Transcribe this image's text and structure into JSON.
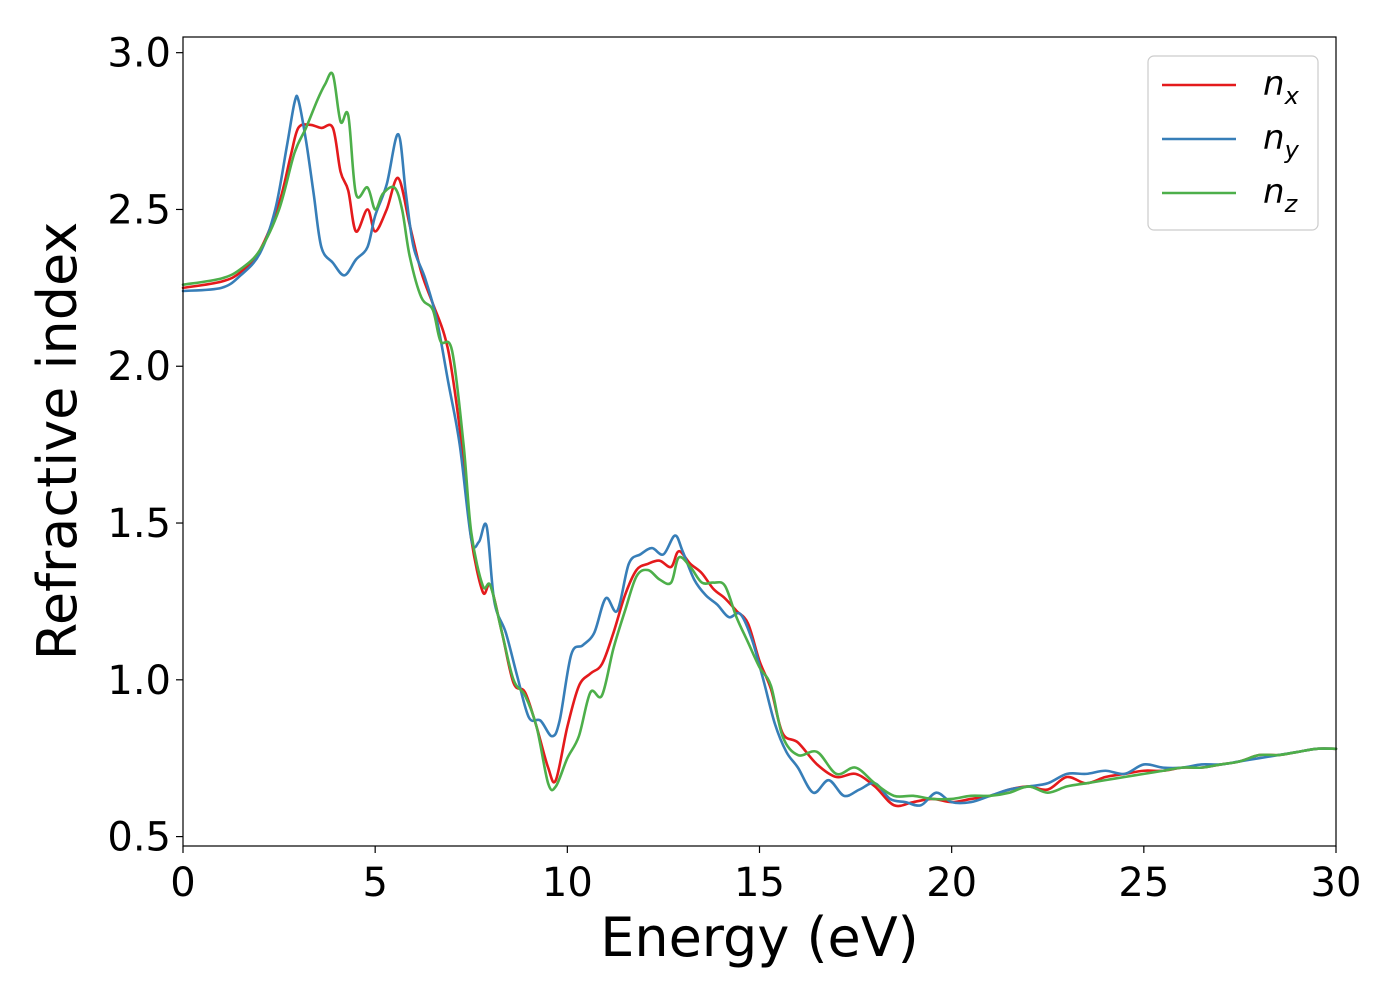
{
  "chart_data": {
    "type": "line",
    "xlabel": "Energy (eV)",
    "ylabel": "Refractive index",
    "xlim": [
      0,
      30
    ],
    "ylim": [
      0.47,
      3.05
    ],
    "xticks": [
      0,
      5,
      10,
      15,
      20,
      25,
      30
    ],
    "xtick_labels": [
      "0",
      "5",
      "10",
      "15",
      "20",
      "25",
      "30"
    ],
    "yticks": [
      0.5,
      1.0,
      1.5,
      2.0,
      2.5,
      3.0
    ],
    "ytick_labels": [
      "0.5",
      "1.0",
      "1.5",
      "2.0",
      "2.5",
      "3.0"
    ],
    "grid": false,
    "legend_position": "top-right",
    "series": [
      {
        "name": "n_x",
        "label_main": "n",
        "label_sub": "x",
        "color": "#e41a1c",
        "x": [
          0,
          1,
          1.5,
          2,
          2.5,
          2.8,
          3.0,
          3.3,
          3.6,
          3.9,
          4.1,
          4.3,
          4.5,
          4.8,
          5.0,
          5.3,
          5.6,
          5.9,
          6.2,
          6.5,
          6.8,
          7.0,
          7.3,
          7.5,
          7.8,
          8.0,
          8.3,
          8.6,
          8.9,
          9.2,
          9.5,
          9.7,
          10.0,
          10.3,
          10.6,
          10.9,
          11.2,
          11.5,
          11.8,
          12.1,
          12.4,
          12.7,
          12.9,
          13.2,
          13.5,
          13.8,
          14.1,
          14.4,
          14.7,
          15.0,
          15.3,
          15.6,
          16.0,
          16.5,
          17.0,
          17.5,
          18.0,
          18.5,
          19.0,
          19.5,
          20.0,
          20.5,
          21.0,
          21.5,
          22.0,
          22.5,
          23.0,
          23.5,
          24.0,
          24.5,
          25.0,
          25.5,
          26.0,
          26.5,
          27.0,
          27.5,
          28.0,
          28.5,
          29.0,
          29.5,
          30.0
        ],
        "y": [
          2.25,
          2.27,
          2.3,
          2.37,
          2.52,
          2.67,
          2.76,
          2.77,
          2.76,
          2.76,
          2.62,
          2.56,
          2.43,
          2.5,
          2.43,
          2.5,
          2.6,
          2.45,
          2.3,
          2.2,
          2.1,
          1.98,
          1.7,
          1.45,
          1.28,
          1.3,
          1.15,
          0.99,
          0.96,
          0.85,
          0.72,
          0.68,
          0.85,
          0.98,
          1.02,
          1.05,
          1.15,
          1.27,
          1.35,
          1.37,
          1.38,
          1.36,
          1.41,
          1.37,
          1.34,
          1.29,
          1.26,
          1.22,
          1.18,
          1.06,
          0.97,
          0.83,
          0.8,
          0.73,
          0.69,
          0.7,
          0.66,
          0.6,
          0.61,
          0.62,
          0.61,
          0.62,
          0.63,
          0.65,
          0.66,
          0.65,
          0.69,
          0.67,
          0.69,
          0.7,
          0.71,
          0.71,
          0.72,
          0.72,
          0.73,
          0.74,
          0.76,
          0.76,
          0.77,
          0.78,
          0.78
        ]
      },
      {
        "name": "n_y",
        "label_main": "n",
        "label_sub": "y",
        "color": "#377eb8",
        "x": [
          0,
          1,
          1.5,
          2,
          2.4,
          2.7,
          2.9,
          3.0,
          3.2,
          3.4,
          3.6,
          3.9,
          4.2,
          4.5,
          4.8,
          5.0,
          5.3,
          5.6,
          5.8,
          6.0,
          6.3,
          6.6,
          6.9,
          7.2,
          7.5,
          7.7,
          7.9,
          8.1,
          8.4,
          8.7,
          9.0,
          9.3,
          9.6,
          9.8,
          10.1,
          10.4,
          10.7,
          11.0,
          11.3,
          11.6,
          11.9,
          12.2,
          12.5,
          12.8,
          13.0,
          13.3,
          13.6,
          13.9,
          14.2,
          14.5,
          14.8,
          15.1,
          15.4,
          15.7,
          16.0,
          16.4,
          16.8,
          17.2,
          17.6,
          18.0,
          18.4,
          18.8,
          19.2,
          19.6,
          20.0,
          20.5,
          21.0,
          21.5,
          22.0,
          22.5,
          23.0,
          23.5,
          24.0,
          24.5,
          25.0,
          25.5,
          26.0,
          26.5,
          27.0,
          27.5,
          28.0,
          28.5,
          29.0,
          29.5,
          30.0
        ],
        "y": [
          2.24,
          2.25,
          2.29,
          2.36,
          2.5,
          2.7,
          2.84,
          2.85,
          2.72,
          2.55,
          2.38,
          2.33,
          2.29,
          2.34,
          2.38,
          2.48,
          2.58,
          2.74,
          2.55,
          2.38,
          2.28,
          2.15,
          1.95,
          1.75,
          1.45,
          1.44,
          1.49,
          1.25,
          1.15,
          1.01,
          0.88,
          0.87,
          0.82,
          0.87,
          1.08,
          1.11,
          1.15,
          1.26,
          1.22,
          1.37,
          1.4,
          1.42,
          1.4,
          1.46,
          1.41,
          1.32,
          1.27,
          1.24,
          1.2,
          1.21,
          1.13,
          1.0,
          0.86,
          0.77,
          0.72,
          0.64,
          0.68,
          0.63,
          0.65,
          0.67,
          0.62,
          0.61,
          0.6,
          0.64,
          0.61,
          0.61,
          0.63,
          0.65,
          0.66,
          0.67,
          0.7,
          0.7,
          0.71,
          0.7,
          0.73,
          0.72,
          0.72,
          0.73,
          0.73,
          0.74,
          0.75,
          0.76,
          0.77,
          0.78,
          0.78
        ]
      },
      {
        "name": "n_z",
        "label_main": "n",
        "label_sub": "z",
        "color": "#4daf4a",
        "x": [
          0,
          1,
          1.5,
          2,
          2.5,
          2.9,
          3.2,
          3.5,
          3.7,
          3.9,
          4.1,
          4.3,
          4.5,
          4.8,
          5.0,
          5.2,
          5.5,
          5.7,
          5.9,
          6.2,
          6.5,
          6.7,
          7.0,
          7.3,
          7.5,
          7.8,
          8.0,
          8.3,
          8.6,
          8.9,
          9.2,
          9.5,
          9.7,
          10.0,
          10.3,
          10.6,
          10.9,
          11.2,
          11.5,
          11.8,
          12.1,
          12.4,
          12.7,
          12.9,
          13.2,
          13.5,
          13.8,
          14.1,
          14.4,
          14.7,
          15.0,
          15.3,
          15.6,
          16.0,
          16.5,
          17.0,
          17.5,
          18.0,
          18.5,
          19.0,
          19.5,
          20.0,
          20.5,
          21.0,
          21.5,
          22.0,
          22.5,
          23.0,
          23.5,
          24.0,
          24.5,
          25.0,
          25.5,
          26.0,
          26.5,
          27.0,
          27.5,
          28.0,
          28.5,
          29.0,
          29.5,
          30.0
        ],
        "y": [
          2.26,
          2.28,
          2.31,
          2.37,
          2.5,
          2.68,
          2.76,
          2.85,
          2.9,
          2.93,
          2.78,
          2.8,
          2.55,
          2.57,
          2.5,
          2.55,
          2.57,
          2.5,
          2.35,
          2.22,
          2.18,
          2.08,
          2.05,
          1.75,
          1.47,
          1.3,
          1.3,
          1.15,
          1.0,
          0.95,
          0.85,
          0.67,
          0.66,
          0.75,
          0.82,
          0.96,
          0.95,
          1.1,
          1.22,
          1.33,
          1.35,
          1.32,
          1.31,
          1.39,
          1.36,
          1.31,
          1.31,
          1.3,
          1.2,
          1.12,
          1.04,
          0.98,
          0.82,
          0.76,
          0.77,
          0.7,
          0.72,
          0.67,
          0.63,
          0.63,
          0.62,
          0.62,
          0.63,
          0.63,
          0.64,
          0.66,
          0.64,
          0.66,
          0.67,
          0.68,
          0.69,
          0.7,
          0.71,
          0.72,
          0.72,
          0.73,
          0.74,
          0.76,
          0.76,
          0.77,
          0.78,
          0.78
        ]
      }
    ]
  }
}
